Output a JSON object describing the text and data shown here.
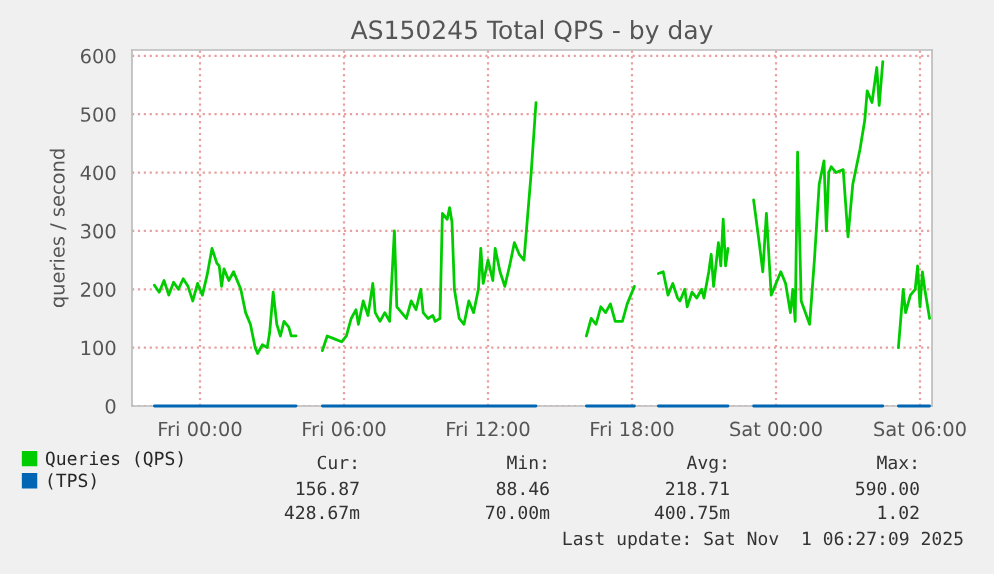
{
  "chart_data": {
    "type": "line",
    "title": "AS150245 Total QPS - by day",
    "ylabel": "queries / second",
    "x": [
      "2025-10-30T22:06",
      "2025-10-30T22:18",
      "2025-10-30T22:30",
      "2025-10-30T22:42",
      "2025-10-30T22:54",
      "2025-10-30T23:06",
      "2025-10-30T23:18",
      "2025-10-30T23:30",
      "2025-10-30T23:42",
      "2025-10-30T23:54",
      "2025-10-31T00:06",
      "2025-10-31T00:18",
      "2025-10-31T00:30",
      "2025-10-31T00:42",
      "2025-10-31T00:48",
      "2025-10-31T00:54",
      "2025-10-31T01:00",
      "2025-10-31T01:12",
      "2025-10-31T01:24",
      "2025-10-31T01:30",
      "2025-10-31T01:42",
      "2025-10-31T01:54",
      "2025-10-31T02:06",
      "2025-10-31T02:18",
      "2025-10-31T02:24",
      "2025-10-31T02:36",
      "2025-10-31T02:48",
      "2025-10-31T02:54",
      "2025-10-31T03:03",
      "2025-10-31T03:12",
      "2025-10-31T03:21",
      "2025-10-31T03:30",
      "2025-10-31T03:42",
      "2025-10-31T03:48",
      "2025-10-31T04:00",
      "2025-10-31T04:30",
      "2025-10-31T05:06",
      "2025-10-31T05:18",
      "2025-10-31T05:36",
      "2025-10-31T05:54",
      "2025-10-31T06:06",
      "2025-10-31T06:18",
      "2025-10-31T06:30",
      "2025-10-31T06:36",
      "2025-10-31T06:48",
      "2025-10-31T07:00",
      "2025-10-31T07:12",
      "2025-10-31T07:18",
      "2025-10-31T07:30",
      "2025-10-31T07:42",
      "2025-10-31T07:54",
      "2025-10-31T08:06",
      "2025-10-31T08:12",
      "2025-10-31T08:24",
      "2025-10-31T08:36",
      "2025-10-31T08:48",
      "2025-10-31T09:00",
      "2025-10-31T09:12",
      "2025-10-31T09:18",
      "2025-10-31T09:30",
      "2025-10-31T09:42",
      "2025-10-31T09:48",
      "2025-10-31T10:00",
      "2025-10-31T10:06",
      "2025-10-31T10:18",
      "2025-10-31T10:24",
      "2025-10-31T10:30",
      "2025-10-31T10:36",
      "2025-10-31T10:48",
      "2025-10-31T11:00",
      "2025-10-31T11:12",
      "2025-10-31T11:24",
      "2025-10-31T11:36",
      "2025-10-31T11:42",
      "2025-10-31T11:48",
      "2025-10-31T12:00",
      "2025-10-31T12:12",
      "2025-10-31T12:18",
      "2025-10-31T12:30",
      "2025-10-31T12:42",
      "2025-10-31T12:54",
      "2025-10-31T13:06",
      "2025-10-31T13:18",
      "2025-10-31T13:30",
      "2025-10-31T13:36",
      "2025-10-31T13:48",
      "2025-10-31T14:00",
      "2025-10-31T15:00",
      "2025-10-31T16:06",
      "2025-10-31T16:18",
      "2025-10-31T16:30",
      "2025-10-31T16:42",
      "2025-10-31T16:54",
      "2025-10-31T17:06",
      "2025-10-31T17:18",
      "2025-10-31T17:36",
      "2025-10-31T17:48",
      "2025-10-31T18:06",
      "2025-10-31T18:36",
      "2025-10-31T19:06",
      "2025-10-31T19:18",
      "2025-10-31T19:30",
      "2025-10-31T19:42",
      "2025-10-31T19:54",
      "2025-10-31T20:00",
      "2025-10-31T20:12",
      "2025-10-31T20:18",
      "2025-10-31T20:30",
      "2025-10-31T20:42",
      "2025-10-31T20:54",
      "2025-10-31T21:00",
      "2025-10-31T21:12",
      "2025-10-31T21:18",
      "2025-10-31T21:24",
      "2025-10-31T21:36",
      "2025-10-31T21:42",
      "2025-10-31T21:48",
      "2025-10-31T21:54",
      "2025-10-31T22:00",
      "2025-10-31T22:30",
      "2025-10-31T23:04",
      "2025-10-31T23:18",
      "2025-10-31T23:27",
      "2025-10-31T23:36",
      "2025-10-31T23:48",
      "2025-11-01T00:12",
      "2025-11-01T00:24",
      "2025-11-01T00:36",
      "2025-11-01T00:42",
      "2025-11-01T00:48",
      "2025-11-01T00:54",
      "2025-11-01T01:03",
      "2025-11-01T01:24",
      "2025-11-01T01:36",
      "2025-11-01T01:48",
      "2025-11-01T02:00",
      "2025-11-01T02:06",
      "2025-11-01T02:12",
      "2025-11-01T02:18",
      "2025-11-01T02:30",
      "2025-11-01T02:48",
      "2025-11-01T03:00",
      "2025-11-01T03:12",
      "2025-11-01T03:30",
      "2025-11-01T03:42",
      "2025-11-01T03:48",
      "2025-11-01T04:00",
      "2025-11-01T04:12",
      "2025-11-01T04:18",
      "2025-11-01T04:27",
      "2025-11-01T04:48",
      "2025-11-01T05:06",
      "2025-11-01T05:18",
      "2025-11-01T05:24",
      "2025-11-01T05:36",
      "2025-11-01T05:48",
      "2025-11-01T05:54",
      "2025-11-01T06:00",
      "2025-11-01T06:06",
      "2025-11-01T06:12",
      "2025-11-01T06:24"
    ],
    "series": [
      {
        "name": "Queries (QPS)",
        "color": "#00cc00",
        "values": [
          207,
          195,
          215,
          190,
          212,
          200,
          218,
          205,
          180,
          210,
          190,
          225,
          270,
          245,
          240,
          205,
          235,
          215,
          230,
          220,
          200,
          160,
          140,
          100,
          90,
          105,
          100,
          125,
          195,
          140,
          120,
          145,
          135,
          120,
          120,
          null,
          95,
          120,
          115,
          110,
          120,
          150,
          165,
          140,
          180,
          155,
          210,
          160,
          145,
          160,
          145,
          300,
          170,
          160,
          150,
          180,
          165,
          200,
          160,
          150,
          155,
          145,
          150,
          330,
          320,
          340,
          315,
          200,
          150,
          140,
          180,
          160,
          200,
          270,
          210,
          250,
          215,
          270,
          230,
          205,
          240,
          280,
          260,
          250,
          300,
          400,
          520,
          null,
          120,
          150,
          140,
          170,
          160,
          175,
          145,
          145,
          175,
          205,
          null,
          227,
          230,
          190,
          210,
          185,
          180,
          200,
          170,
          195,
          185,
          200,
          185,
          230,
          260,
          205,
          280,
          240,
          320,
          240,
          270,
          null,
          353,
          280,
          230,
          330,
          190,
          230,
          210,
          160,
          200,
          145,
          435,
          180,
          140,
          250,
          380,
          420,
          300,
          400,
          410,
          400,
          405,
          290,
          380,
          440,
          490,
          540,
          520,
          580,
          515,
          590,
          null,
          100,
          200,
          160,
          190,
          200,
          240,
          170,
          230,
          200,
          150
        ]
      },
      {
        "name": "(TPS)",
        "color": "#0066b3",
        "x": [
          "2025-10-30T22:06",
          "2025-10-31T04:00",
          "2025-10-31T04:30",
          "2025-10-31T05:06",
          "2025-10-31T14:00",
          "2025-10-31T15:00",
          "2025-10-31T16:06",
          "2025-10-31T18:06",
          "2025-10-31T18:36",
          "2025-10-31T19:06",
          "2025-10-31T22:00",
          "2025-10-31T22:30",
          "2025-10-31T23:04",
          "2025-11-01T04:27",
          "2025-11-01T04:48",
          "2025-11-01T05:06",
          "2025-11-01T06:24"
        ],
        "values": [
          0,
          0,
          null,
          0,
          0,
          null,
          0,
          0,
          null,
          0,
          0,
          null,
          0,
          0,
          null,
          0,
          0
        ]
      }
    ],
    "xlim": [
      "2025-10-30T21:10",
      "2025-11-01T06:30"
    ],
    "xticks": [
      {
        "value": "2025-10-31T00:00",
        "label": "Fri 00:00"
      },
      {
        "value": "2025-10-31T06:00",
        "label": "Fri 06:00"
      },
      {
        "value": "2025-10-31T12:00",
        "label": "Fri 12:00"
      },
      {
        "value": "2025-10-31T18:00",
        "label": "Fri 18:00"
      },
      {
        "value": "2025-11-01T00:00",
        "label": "Sat 00:00"
      },
      {
        "value": "2025-11-01T06:00",
        "label": "Sat 06:00"
      }
    ],
    "ylim": [
      0,
      610
    ],
    "yticks": [
      0,
      100,
      200,
      300,
      400,
      500,
      600
    ],
    "grid": true,
    "legend": "bottom left",
    "marker": "none",
    "line_style": "solid",
    "annotations": [
      "Cur:",
      "Min:",
      "Avg:",
      "Max:",
      "156.87",
      "88.46",
      "218.71",
      "590.00",
      "428.67m",
      "70.00m",
      "400.75m",
      "1.02",
      "Last update: Sat Nov  1 06:27:09 2025"
    ]
  }
}
